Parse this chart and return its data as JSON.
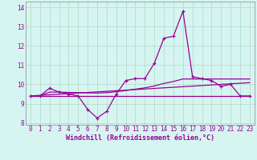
{
  "xlabel": "Windchill (Refroidissement éolien,°C)",
  "bg_color": "#d6f5f0",
  "line_color": "#990099",
  "hours": [
    0,
    1,
    2,
    3,
    4,
    5,
    6,
    7,
    8,
    9,
    10,
    11,
    12,
    13,
    14,
    15,
    16,
    17,
    18,
    19,
    20,
    21,
    22,
    23
  ],
  "temp": [
    9.4,
    9.4,
    9.8,
    9.6,
    9.5,
    9.4,
    8.7,
    8.25,
    8.6,
    9.5,
    10.2,
    10.3,
    10.3,
    11.1,
    12.4,
    12.5,
    13.8,
    10.4,
    10.3,
    10.2,
    9.9,
    10.0,
    9.4,
    9.4
  ],
  "avg_line": [
    9.4,
    9.4,
    9.6,
    9.6,
    9.58,
    9.57,
    9.56,
    9.55,
    9.57,
    9.62,
    9.68,
    9.75,
    9.82,
    9.92,
    10.05,
    10.15,
    10.28,
    10.28,
    10.28,
    10.28,
    10.28,
    10.28,
    10.28,
    10.28
  ],
  "flat_line": [
    9.4,
    9.4,
    9.4,
    9.4,
    9.4,
    9.4,
    9.4,
    9.4,
    9.4,
    9.4,
    9.4,
    9.4,
    9.4,
    9.4,
    9.4,
    9.4,
    9.4,
    9.4,
    9.4,
    9.4,
    9.4,
    9.4,
    9.4,
    9.4
  ],
  "trend_line": [
    9.4,
    9.43,
    9.46,
    9.49,
    9.52,
    9.55,
    9.58,
    9.61,
    9.64,
    9.67,
    9.7,
    9.73,
    9.76,
    9.79,
    9.82,
    9.85,
    9.88,
    9.91,
    9.94,
    9.97,
    10.0,
    10.03,
    10.06,
    10.09
  ],
  "ylim": [
    7.9,
    14.3
  ],
  "yticks": [
    8,
    9,
    10,
    11,
    12,
    13,
    14
  ],
  "xlim": [
    -0.5,
    23.5
  ],
  "xticks": [
    0,
    1,
    2,
    3,
    4,
    5,
    6,
    7,
    8,
    9,
    10,
    11,
    12,
    13,
    14,
    15,
    16,
    17,
    18,
    19,
    20,
    21,
    22,
    23
  ],
  "grid_color": "#b0d8cc",
  "xlabel_fontsize": 6.0,
  "tick_fontsize": 5.5
}
